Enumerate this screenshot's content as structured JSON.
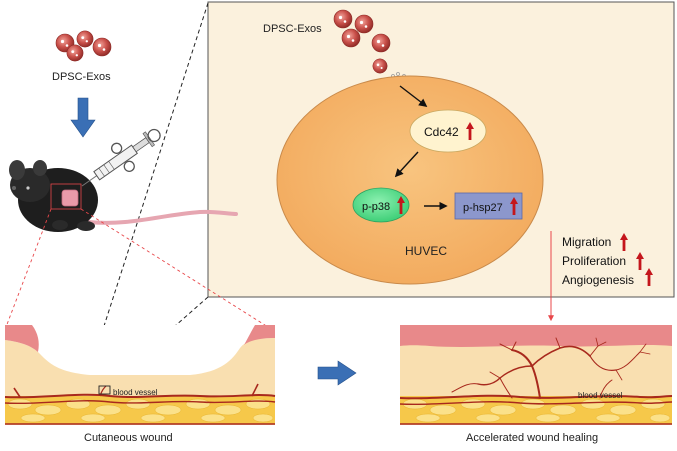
{
  "left_panel": {
    "exosome_label": "DPSC-Exos",
    "wound_caption": "Cutaneous wound",
    "vessel_label": "blood vessel"
  },
  "inset": {
    "exosome_label": "DPSC-Exos",
    "cell_label": "HUVEC",
    "nodes": {
      "cdc42": "Cdc42",
      "pp38": "p-p38",
      "phsp27": "p-hsp27"
    }
  },
  "outcomes": [
    "Migration",
    "Proliferation",
    "Angiogenesis"
  ],
  "right_panel": {
    "caption": "Accelerated wound healing",
    "vessel_label": "blood vessel"
  },
  "colors": {
    "inset_bg": "#fbf1dd",
    "cell": "#f7b66a",
    "cdc42": "#fff3cf",
    "pp38": "#63de92",
    "phsp27": "#8c97cc",
    "up_arrow": "#c4161c",
    "flow_arrow": "#3a6fb5",
    "exosome": "#c9504a",
    "dermis": "#f9dfb0",
    "epidermis": "#e8898a",
    "fat": "#f6c84a",
    "vessel": "#a8291d",
    "guide_line": "#e8474a"
  },
  "icons": [
    "exosome-icon",
    "mouse-icon",
    "syringe-icon",
    "up-arrow-icon",
    "flow-arrow-icon"
  ]
}
